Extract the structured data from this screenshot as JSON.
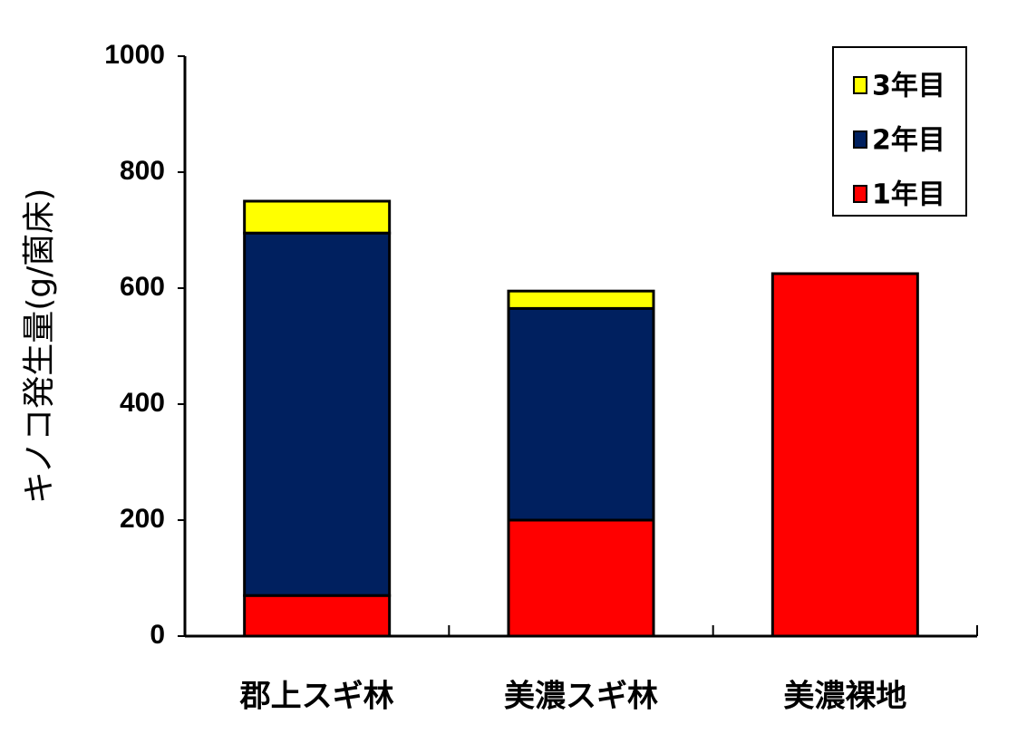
{
  "chart_data": {
    "type": "stacked_bar",
    "y_label": "キノコ発生量(g/菌床)",
    "categories": [
      "郡上スギ林",
      "美濃スギ林",
      "美濃裸地"
    ],
    "series": [
      {
        "name": "1年目",
        "color": "#ff0000",
        "values": [
          70,
          200,
          625
        ]
      },
      {
        "name": "2年目",
        "color": "#00205f",
        "values": [
          625,
          365,
          0
        ]
      },
      {
        "name": "3年目",
        "color": "#ffff00",
        "values": [
          55,
          30,
          0
        ]
      }
    ],
    "ylim": [
      0,
      1000
    ],
    "yticks": [
      0,
      200,
      400,
      600,
      800,
      1000
    ],
    "grid": false,
    "legend": "top-right"
  }
}
